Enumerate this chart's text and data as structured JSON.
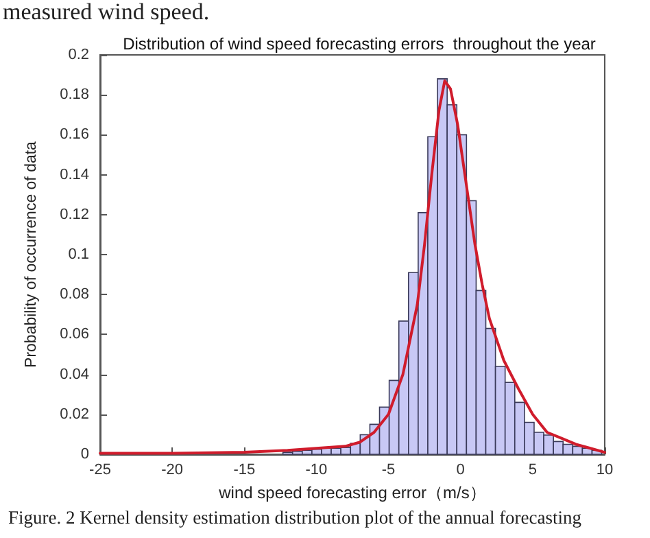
{
  "chart_data": {
    "type": "histogram",
    "title": "Distribution of wind speed forecasting errors  throughout the year",
    "xlabel": "wind speed forecasting error（m/s）",
    "ylabel": "Probability of occurrence of data",
    "annotations": [
      "measured wind speed.",
      "Figure. 2 Kernel density estimation distribution plot of the annual forecasting"
    ],
    "bins": [
      -12.32,
      -11.65,
      -10.98,
      -10.31,
      -9.64,
      -8.97,
      -8.3,
      -7.63,
      -6.96,
      -6.29,
      -5.62,
      -4.95,
      -4.28,
      -3.61,
      -2.94,
      -2.27,
      -1.6,
      -0.93,
      -0.26,
      0.41,
      1.08,
      1.75,
      2.42,
      3.09,
      3.76,
      4.43,
      5.1,
      5.77,
      6.44,
      7.11,
      7.78,
      8.45,
      9.12,
      9.79
    ],
    "series": [
      {
        "color": "#c8c8f5",
        "values": [
          0.001,
          0.0015,
          0.002,
          0.0025,
          0.003,
          0.003,
          0.0034,
          0.0055,
          0.0098,
          0.015,
          0.0236,
          0.037,
          0.0667,
          0.091,
          0.121,
          0.159,
          0.188,
          0.175,
          0.16,
          0.127,
          0.082,
          0.063,
          0.044,
          0.036,
          0.026,
          0.016,
          0.011,
          0.0096,
          0.0064,
          0.005,
          0.004,
          0.003,
          0.002
        ]
      },
      {
        "type": "line",
        "color": "#d01c2c",
        "x": [
          -25,
          -20,
          -15,
          -12,
          -10,
          -8,
          -7,
          -6,
          -5,
          -4,
          -3,
          -2.5,
          -2,
          -1.5,
          -1.1,
          -0.7,
          -0.2,
          0.5,
          1,
          1.5,
          2,
          3,
          4,
          5,
          6,
          7,
          8,
          9,
          10
        ],
        "values": [
          0.0005,
          0.0005,
          0.001,
          0.002,
          0.003,
          0.004,
          0.006,
          0.011,
          0.02,
          0.04,
          0.075,
          0.105,
          0.14,
          0.172,
          0.187,
          0.183,
          0.165,
          0.13,
          0.105,
          0.085,
          0.068,
          0.047,
          0.033,
          0.02,
          0.011,
          0.008,
          0.005,
          0.003,
          0.001
        ]
      }
    ],
    "xlim": [
      -25,
      10
    ],
    "xticks": [
      -25,
      -20,
      -15,
      -10,
      -5,
      0,
      5,
      10
    ],
    "ylim": [
      0,
      0.2
    ],
    "yticks": [
      0,
      0.02,
      0.04,
      0.06,
      0.08,
      0.1,
      0.12,
      0.14,
      0.16,
      0.18,
      0.2
    ],
    "grid": false,
    "marker": "none",
    "line_style": "solid"
  }
}
